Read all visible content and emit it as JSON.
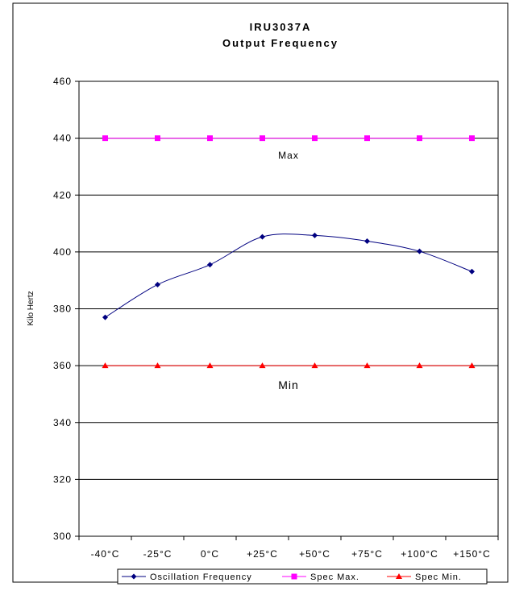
{
  "chart_data": {
    "type": "line",
    "title": "IRU3037A",
    "subtitle": "Output Frequency",
    "xlabel": "",
    "ylabel": "Kilo Hertz",
    "categories": [
      "-40°C",
      "-25°C",
      "0°C",
      "+25°C",
      "+50°C",
      "+75°C",
      "+100°C",
      "+150°C"
    ],
    "ylim": [
      300,
      460
    ],
    "yticks": [
      300,
      320,
      340,
      360,
      380,
      400,
      420,
      440,
      460
    ],
    "grid": true,
    "legend_position": "bottom",
    "series": [
      {
        "name": "Oscillation Frequency",
        "color": "#000080",
        "marker": "diamond",
        "smooth": true,
        "values": [
          377,
          388.5,
          395.5,
          405.3,
          405.8,
          403.8,
          400.2,
          393.1
        ]
      },
      {
        "name": "Spec Max.",
        "color": "#ff00ff",
        "marker": "square",
        "smooth": false,
        "values": [
          440,
          440,
          440,
          440,
          440,
          440,
          440,
          440
        ]
      },
      {
        "name": "Spec Min.",
        "color": "#ff0000",
        "marker": "triangle",
        "smooth": false,
        "values": [
          360,
          360,
          360,
          360,
          360,
          360,
          360,
          360
        ]
      }
    ],
    "annotations": [
      {
        "text": "Max",
        "x_index": 3.5,
        "y": 434
      },
      {
        "text": "Min",
        "x_index": 3.5,
        "y": 353
      }
    ]
  }
}
